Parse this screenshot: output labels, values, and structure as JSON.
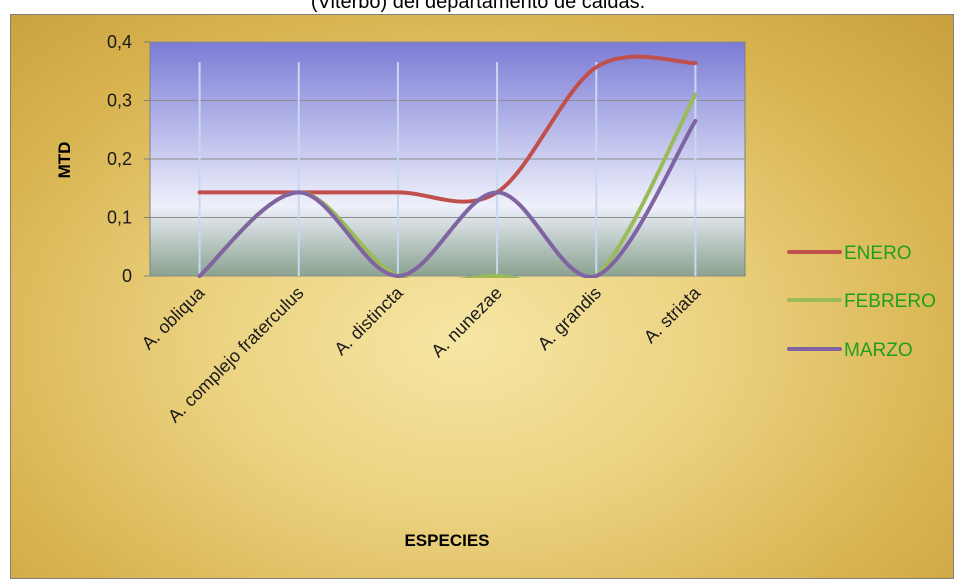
{
  "header": {
    "caption": "(Viterbo) del departamento de caldas."
  },
  "chart_data": {
    "type": "line",
    "title": "",
    "xlabel": "ESPECIES",
    "ylabel": "MTD",
    "categories": [
      "A. obliqua",
      "A. complejo fraterculus",
      "A. distincta",
      "A. nunezae",
      "A. grandis",
      "A. striata"
    ],
    "ylim": [
      0,
      0.4
    ],
    "yticks": [
      "0",
      "0,1",
      "0,2",
      "0,3",
      "0,4"
    ],
    "ytick_values": [
      0,
      0.1,
      0.2,
      0.3,
      0.4
    ],
    "grid": "horizontal",
    "legend_position": "right",
    "series": [
      {
        "name": "ENERO",
        "color": "#c0504d",
        "values": [
          0.143,
          0.143,
          0.143,
          0.143,
          0.357,
          0.364
        ]
      },
      {
        "name": "FEBRERO",
        "color": "#9bbb59",
        "values": [
          0,
          0.143,
          0,
          0,
          0,
          0.31
        ]
      },
      {
        "name": "MARZO",
        "color": "#8064a2",
        "values": [
          0,
          0.143,
          0,
          0.143,
          0,
          0.265
        ]
      }
    ],
    "legend_text_color": "#1ea01e",
    "plot_area_colors": [
      "#7b7bd6",
      "#eef0fb",
      "#8aa28f"
    ]
  }
}
